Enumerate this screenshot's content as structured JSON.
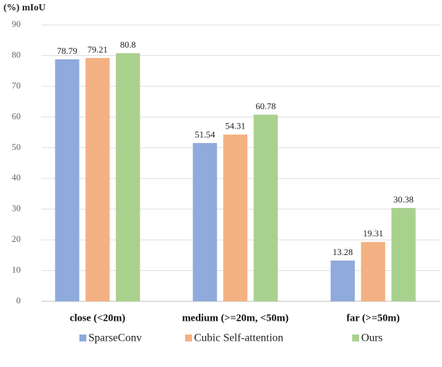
{
  "chart_data": {
    "type": "bar",
    "y_label": "(%) mIoU",
    "categories": [
      "close (<20m)",
      "medium (>=20m, <50m)",
      "far (>=50m)"
    ],
    "series": [
      {
        "name": "SparseConv",
        "color": "#8faadc",
        "values": [
          78.79,
          51.54,
          13.28
        ]
      },
      {
        "name": "Cubic Self-attention",
        "color": "#f4b183",
        "values": [
          79.21,
          54.31,
          19.31
        ]
      },
      {
        "name": "Ours",
        "color": "#a9d18e",
        "values": [
          80.8,
          60.78,
          30.38
        ]
      }
    ],
    "ylim": [
      0,
      90
    ],
    "yticks": [
      0,
      10,
      20,
      30,
      40,
      50,
      60,
      70,
      80,
      90
    ],
    "grid": true
  }
}
